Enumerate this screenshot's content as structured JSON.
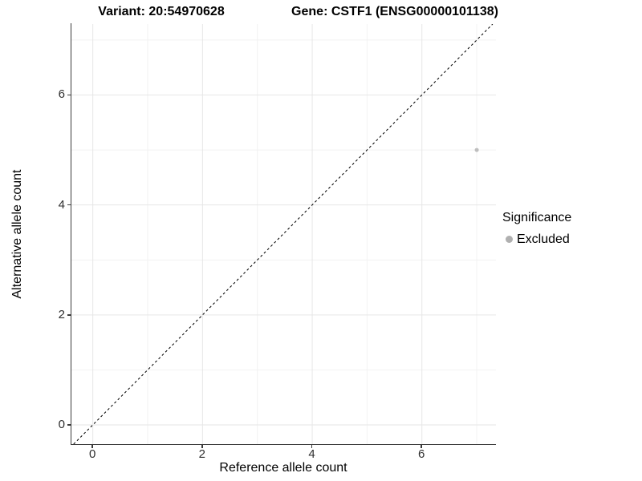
{
  "chart_data": {
    "type": "scatter",
    "title_left": "Variant: 20:54970628",
    "title_right": "Gene: CSTF1 (ENSG00000101138)",
    "xlabel": "Reference allele count",
    "ylabel": "Alternative allele count",
    "x_ticks": [
      0,
      2,
      4,
      6
    ],
    "y_ticks": [
      0,
      2,
      4,
      6
    ],
    "x_minor_gridlines": [
      1,
      3,
      5,
      7
    ],
    "y_minor_gridlines": [
      1,
      3,
      5,
      7
    ],
    "xlim": [
      -0.39,
      7.35
    ],
    "ylim": [
      -0.35,
      7.29
    ],
    "grid": true,
    "points": [
      {
        "x": 7,
        "y": 5,
        "series": "Excluded",
        "color": "#bebebe",
        "radius": 2.5
      }
    ],
    "identity_line": {
      "slope": 1,
      "intercept": 0,
      "style": "dashed",
      "color": "#000000"
    },
    "legend": {
      "title": "Significance",
      "position": "right",
      "entries": [
        {
          "label": "Excluded",
          "color": "#b0b0b0"
        }
      ]
    },
    "colors": {
      "background": "#ffffff",
      "grid_major": "#e6e6e6",
      "grid_minor": "#f2f2f2",
      "axis_line": "#3a3a3a",
      "tick_label": "#2e2e2e"
    }
  }
}
